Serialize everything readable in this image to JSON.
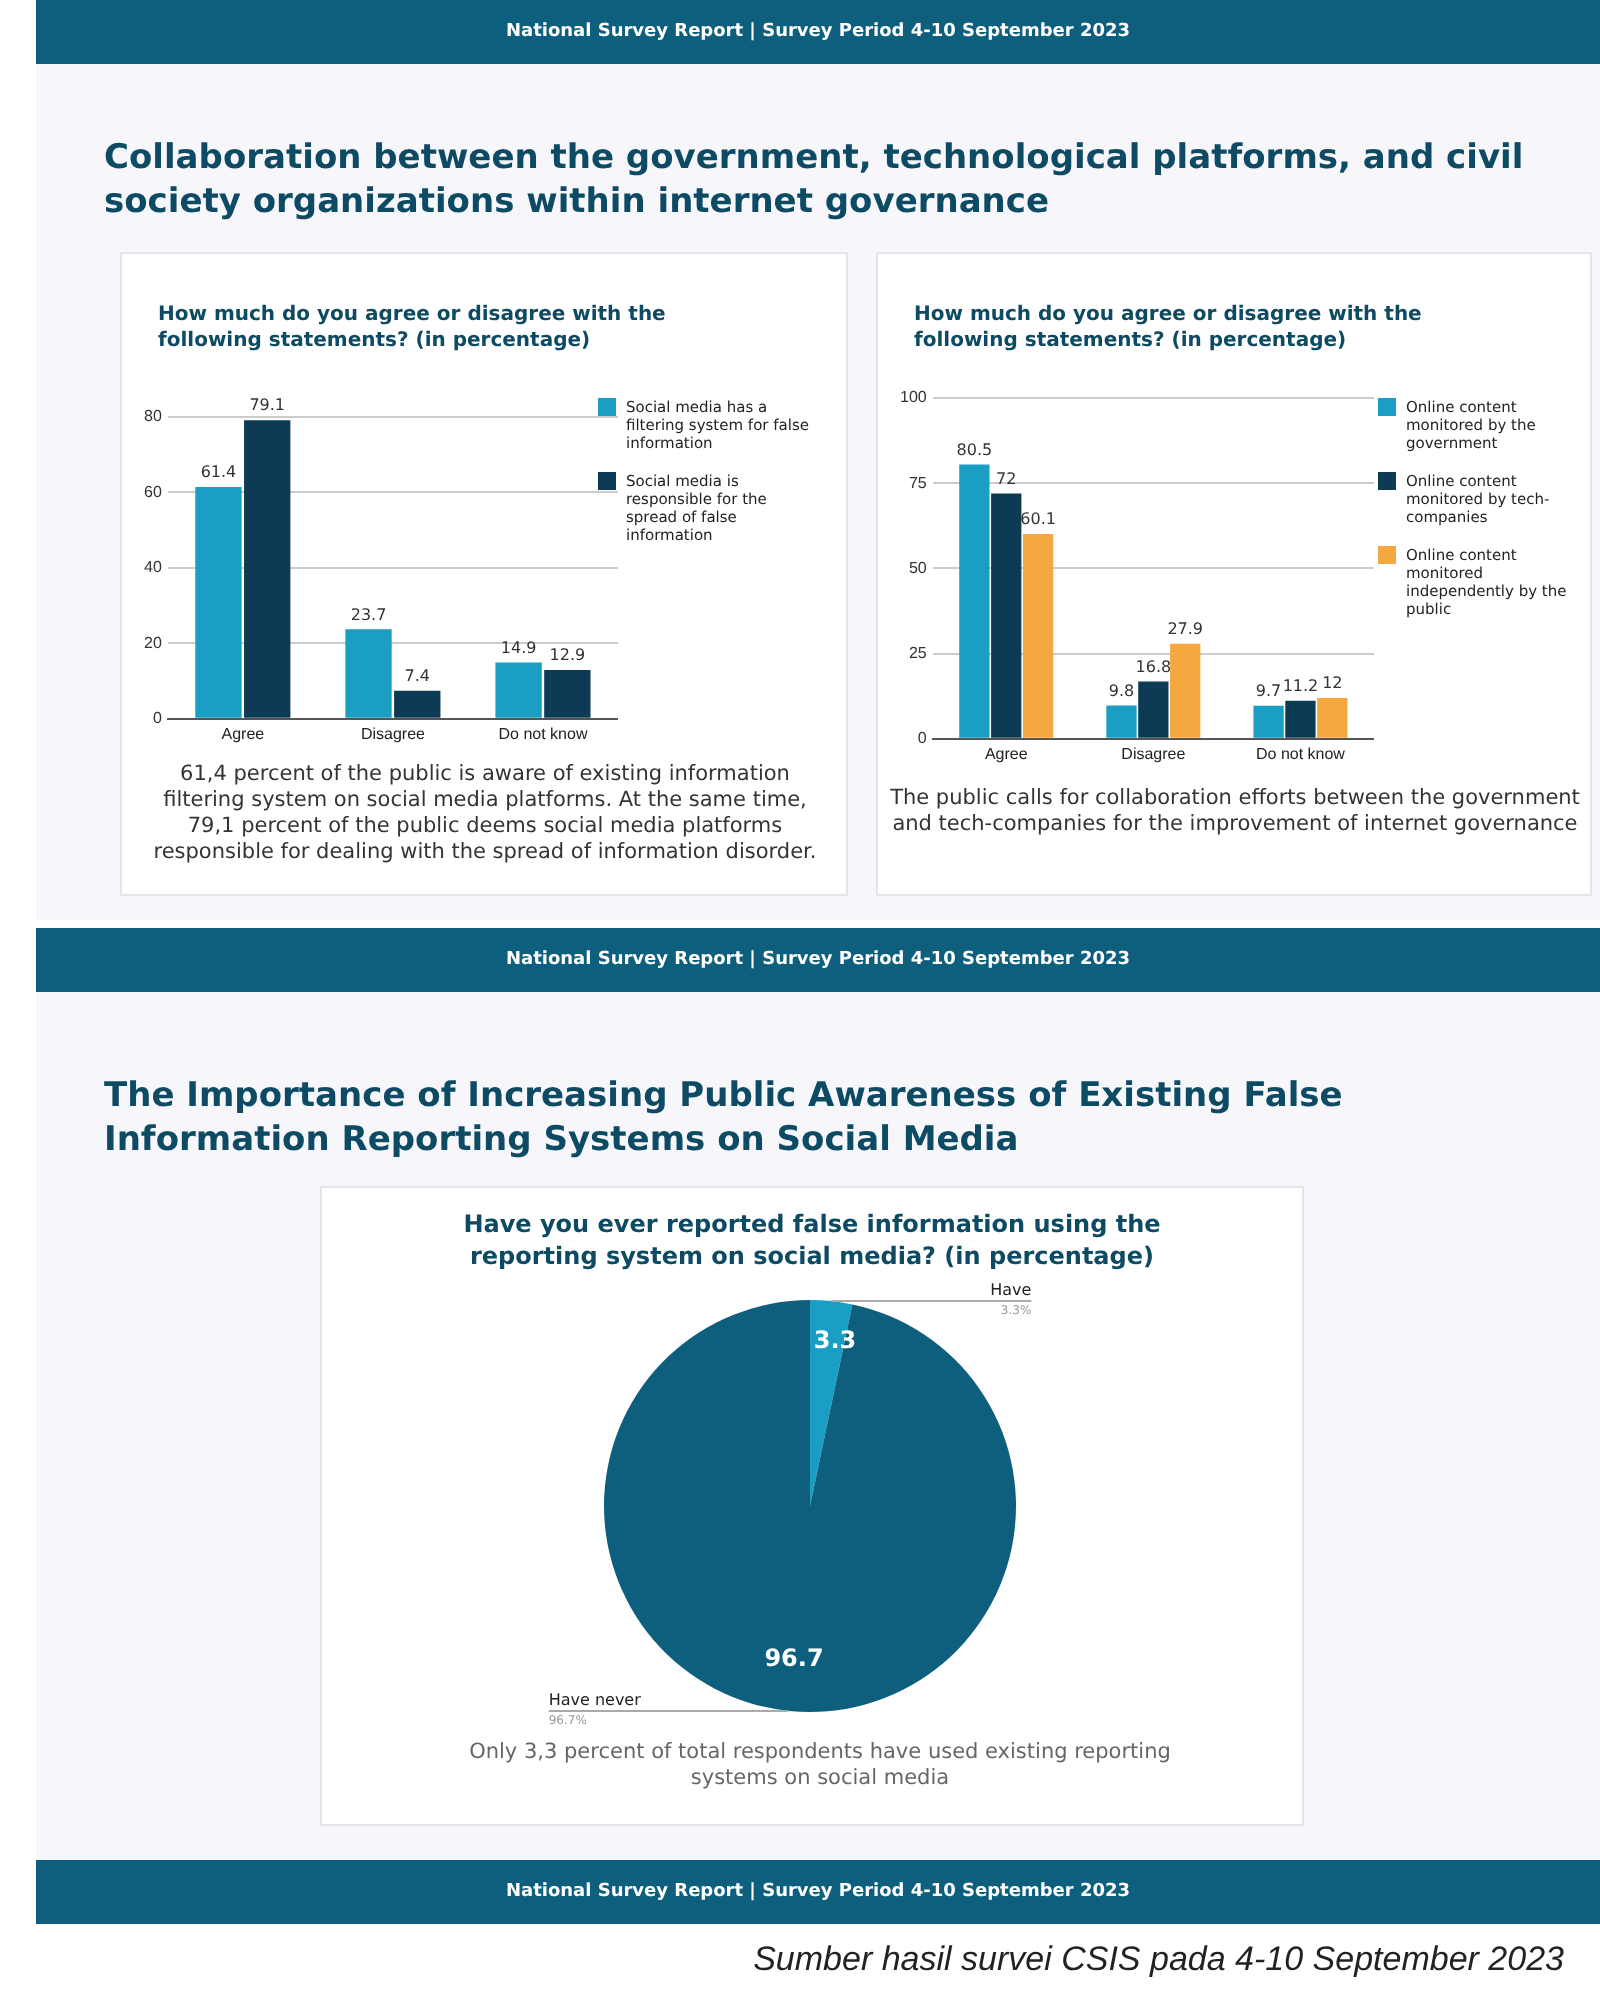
{
  "chart_data": [
    {
      "type": "bar",
      "title": "How much do you agree or disagree with the following statements? (in percentage)",
      "categories": [
        "Agree",
        "Disagree",
        "Do not know"
      ],
      "series": [
        {
          "name": "Social media has a filtering system for false information",
          "color": "#1a9ec4",
          "values": [
            61.4,
            23.7,
            14.9
          ]
        },
        {
          "name": "Social media is responsible for the spread of false information",
          "color": "#0d3b55",
          "values": [
            79.1,
            7.4,
            12.9
          ]
        }
      ],
      "ylim": [
        0,
        85
      ],
      "yticks": [
        0,
        20,
        40,
        60,
        80
      ],
      "grid": "y",
      "legend": "right",
      "data_labels": true,
      "annotations": [
        "National Survey Report | Survey Period 4-10 September 2023",
        "Collaboration between the government, technological platforms, and civil society organizations within internet governance",
        "61,4 percent of the public is aware of existing information filtering system on social media platforms. At the same time, 79,1 percent of the public deems social media platforms responsible for dealing with the spread of information disorder."
      ]
    },
    {
      "type": "bar",
      "title": "How much do you agree or disagree with the following statements? (in percentage)",
      "categories": [
        "Agree",
        "Disagree",
        "Do not know"
      ],
      "series": [
        {
          "name": "Online content monitored by the government",
          "color": "#1a9ec4",
          "values": [
            80.5,
            9.8,
            9.7
          ]
        },
        {
          "name": "Online content monitored by tech-companies",
          "color": "#0d3b55",
          "values": [
            72,
            16.8,
            11.2
          ]
        },
        {
          "name": "Online content monitored independently by the public",
          "color": "#f5a840",
          "values": [
            60.1,
            27.9,
            12
          ]
        }
      ],
      "ylim": [
        0,
        100
      ],
      "yticks": [
        0,
        25,
        50,
        75,
        100
      ],
      "grid": "y",
      "legend": "right",
      "data_labels": true,
      "annotations": [
        "The public calls for collaboration efforts between the government and tech-companies for the improvement of internet governance"
      ]
    },
    {
      "type": "pie",
      "title": "Have you ever reported false information using the reporting system on social media? (in percentage)",
      "categories": [
        "Have",
        "Have never"
      ],
      "values": [
        3.3,
        96.7
      ],
      "colors": [
        "#1a9ec4",
        "#0e5f7e"
      ],
      "data_labels": true,
      "annotations": [
        "National Survey Report | Survey Period 4-10 September 2023",
        "The Importance of Increasing Public Awareness of Existing False Information Reporting Systems on Social Media",
        "Only 3,3 percent of total respondents have used existing reporting systems on social media",
        "National Survey Report | Survey Period 4-10 September 2023",
        "Sumber hasil survei CSIS pada 4-10 September 2023",
        "3.3%",
        "96.7%"
      ]
    }
  ]
}
